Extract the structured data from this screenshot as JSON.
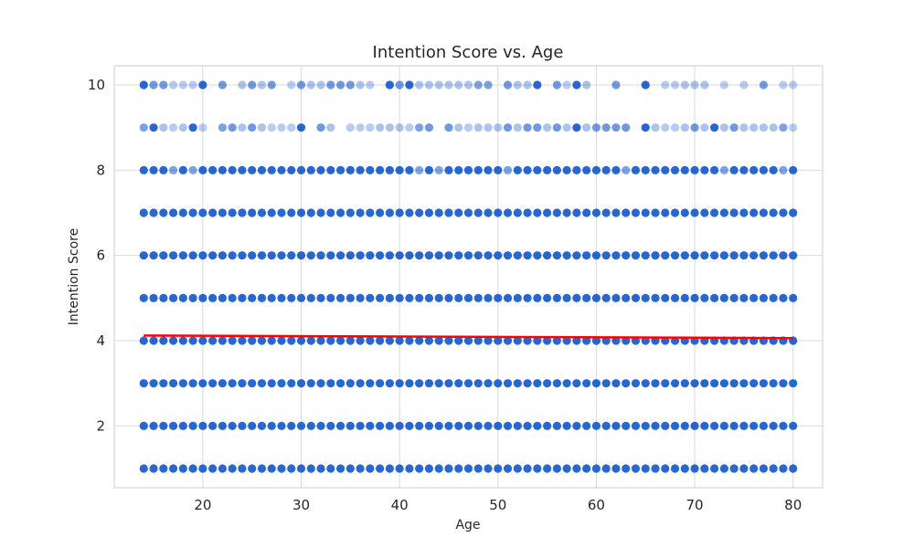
{
  "chart_data": {
    "type": "scatter",
    "title": "Intention Score vs. Age",
    "xlabel": "Age",
    "ylabel": "Intention Score",
    "xlim": [
      11,
      83
    ],
    "ylim": [
      0.55,
      10.45
    ],
    "xticks": [
      20,
      30,
      40,
      50,
      60,
      70,
      80
    ],
    "yticks": [
      2,
      4,
      6,
      8,
      10
    ],
    "grid": true,
    "legend": "none",
    "colors": {
      "points": "#1155cc",
      "trend": "#ff0000",
      "grid": "#d9d9d9",
      "frame": "#cccccc"
    },
    "ages": [
      14,
      80
    ],
    "full_rows": [
      1,
      2,
      3,
      4,
      5,
      6,
      7
    ],
    "row_8_missing_ages": [],
    "row_8_light_ages": [
      17,
      19,
      42,
      44,
      51,
      63,
      73,
      79
    ],
    "sparse_rows": [
      {
        "y": 9,
        "points": [
          [
            14,
            0.55
          ],
          [
            15,
            0.9
          ],
          [
            16,
            0.35
          ],
          [
            17,
            0.3
          ],
          [
            18,
            0.35
          ],
          [
            19,
            0.9
          ],
          [
            20,
            0.3
          ],
          [
            22,
            0.55
          ],
          [
            23,
            0.6
          ],
          [
            24,
            0.35
          ],
          [
            25,
            0.6
          ],
          [
            26,
            0.35
          ],
          [
            27,
            0.3
          ],
          [
            28,
            0.3
          ],
          [
            29,
            0.3
          ],
          [
            30,
            0.9
          ],
          [
            32,
            0.6
          ],
          [
            33,
            0.35
          ],
          [
            35,
            0.3
          ],
          [
            36,
            0.3
          ],
          [
            37,
            0.3
          ],
          [
            38,
            0.35
          ],
          [
            39,
            0.35
          ],
          [
            40,
            0.35
          ],
          [
            41,
            0.3
          ],
          [
            42,
            0.55
          ],
          [
            43,
            0.6
          ],
          [
            45,
            0.6
          ],
          [
            46,
            0.35
          ],
          [
            47,
            0.3
          ],
          [
            48,
            0.35
          ],
          [
            49,
            0.35
          ],
          [
            50,
            0.35
          ],
          [
            51,
            0.6
          ],
          [
            52,
            0.35
          ],
          [
            53,
            0.6
          ],
          [
            54,
            0.6
          ],
          [
            55,
            0.35
          ],
          [
            56,
            0.6
          ],
          [
            57,
            0.35
          ],
          [
            58,
            0.9
          ],
          [
            59,
            0.35
          ],
          [
            60,
            0.6
          ],
          [
            61,
            0.6
          ],
          [
            62,
            0.6
          ],
          [
            63,
            0.6
          ],
          [
            65,
            0.9
          ],
          [
            66,
            0.35
          ],
          [
            67,
            0.3
          ],
          [
            68,
            0.3
          ],
          [
            69,
            0.35
          ],
          [
            70,
            0.6
          ],
          [
            71,
            0.35
          ],
          [
            72,
            0.9
          ],
          [
            73,
            0.35
          ],
          [
            74,
            0.6
          ],
          [
            75,
            0.35
          ],
          [
            76,
            0.35
          ],
          [
            77,
            0.35
          ],
          [
            78,
            0.35
          ],
          [
            79,
            0.55
          ],
          [
            80,
            0.3
          ]
        ]
      },
      {
        "y": 10,
        "points": [
          [
            14,
            0.9
          ],
          [
            15,
            0.6
          ],
          [
            16,
            0.6
          ],
          [
            17,
            0.3
          ],
          [
            18,
            0.3
          ],
          [
            19,
            0.3
          ],
          [
            20,
            0.9
          ],
          [
            22,
            0.6
          ],
          [
            24,
            0.35
          ],
          [
            25,
            0.6
          ],
          [
            26,
            0.35
          ],
          [
            27,
            0.6
          ],
          [
            29,
            0.3
          ],
          [
            30,
            0.6
          ],
          [
            31,
            0.35
          ],
          [
            32,
            0.35
          ],
          [
            33,
            0.6
          ],
          [
            34,
            0.6
          ],
          [
            35,
            0.6
          ],
          [
            36,
            0.35
          ],
          [
            37,
            0.3
          ],
          [
            39,
            0.9
          ],
          [
            40,
            0.6
          ],
          [
            41,
            0.9
          ],
          [
            42,
            0.35
          ],
          [
            43,
            0.35
          ],
          [
            44,
            0.35
          ],
          [
            45,
            0.35
          ],
          [
            46,
            0.35
          ],
          [
            47,
            0.35
          ],
          [
            48,
            0.55
          ],
          [
            49,
            0.55
          ],
          [
            51,
            0.6
          ],
          [
            52,
            0.35
          ],
          [
            53,
            0.35
          ],
          [
            54,
            0.9
          ],
          [
            56,
            0.6
          ],
          [
            57,
            0.3
          ],
          [
            58,
            0.9
          ],
          [
            59,
            0.35
          ],
          [
            62,
            0.6
          ],
          [
            65,
            0.9
          ],
          [
            67,
            0.3
          ],
          [
            68,
            0.3
          ],
          [
            69,
            0.35
          ],
          [
            70,
            0.35
          ],
          [
            71,
            0.35
          ],
          [
            73,
            0.3
          ],
          [
            75,
            0.3
          ],
          [
            77,
            0.6
          ],
          [
            79,
            0.3
          ],
          [
            80,
            0.3
          ]
        ]
      }
    ],
    "trend_line": {
      "x": [
        14,
        80
      ],
      "y": [
        4.12,
        4.06
      ]
    }
  }
}
